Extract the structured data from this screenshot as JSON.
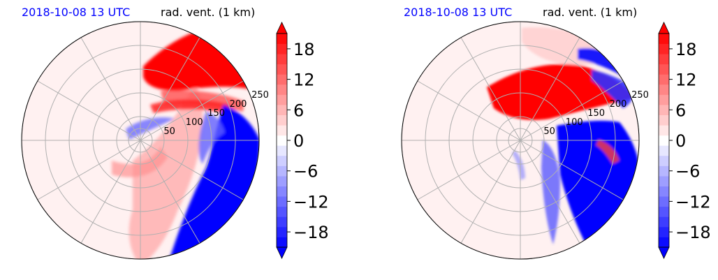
{
  "colors": {
    "date_text": "#0000ff",
    "neg_max": "#0000ff",
    "pos_max": "#ff0000",
    "grid": "#b0b0b0"
  },
  "chart_data": [
    {
      "type": "polar-contourf",
      "title_left": "2018-10-08 13 UTC",
      "title_right": "rad. vent. (1 km)",
      "r_ticks": [
        50,
        100,
        150,
        200,
        250
      ],
      "rlim": [
        0,
        250
      ],
      "n_spokes": 12,
      "grid": true,
      "colorbar": {
        "ticks": [
          -18,
          -12,
          -6,
          0,
          6,
          12,
          18
        ],
        "tick_labels": [
          "−18",
          "−12",
          "−6",
          "0",
          "6",
          "12",
          "18"
        ],
        "vmin": -21,
        "vmax": 21,
        "levels": 21,
        "extend": "both",
        "cmap": "bwr"
      }
    },
    {
      "type": "polar-contourf",
      "title_left": "2018-10-08 13 UTC",
      "title_right": "rad. vent. (1 km)",
      "r_ticks": [
        50,
        100,
        150,
        200,
        250
      ],
      "rlim": [
        0,
        250
      ],
      "n_spokes": 12,
      "grid": true,
      "colorbar": {
        "ticks": [
          -18,
          -12,
          -6,
          0,
          6,
          12,
          18
        ],
        "tick_labels": [
          "−18",
          "−12",
          "−6",
          "0",
          "6",
          "12",
          "18"
        ],
        "vmin": -21,
        "vmax": 21,
        "levels": 21,
        "extend": "both",
        "cmap": "bwr"
      }
    }
  ]
}
